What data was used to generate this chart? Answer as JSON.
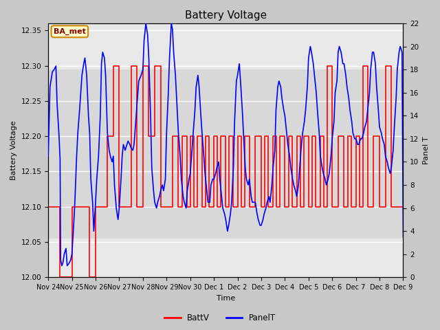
{
  "title": "Battery Voltage",
  "xlabel": "Time",
  "ylabel_left": "Battery Voltage",
  "ylabel_right": "Panel T",
  "ylim_left": [
    12.0,
    12.36
  ],
  "ylim_right": [
    0,
    22
  ],
  "yticks_left": [
    12.0,
    12.05,
    12.1,
    12.15,
    12.2,
    12.25,
    12.3,
    12.35
  ],
  "yticks_right": [
    0,
    2,
    4,
    6,
    8,
    10,
    12,
    14,
    16,
    18,
    20,
    22
  ],
  "fig_facecolor": "#c8c8c8",
  "ax_facecolor": "#e8e8e8",
  "band_facecolor": "#d8d8d8",
  "annotation_box": {
    "text": "BA_met",
    "facecolor": "#ffffcc",
    "edgecolor": "#cc8800"
  },
  "grid_color": "white",
  "batt_color": "red",
  "panel_color": "blue",
  "x_tick_labels": [
    "Nov 24",
    "Nov 25",
    "Nov 26",
    "Nov 27",
    "Nov 28",
    "Nov 29",
    "Nov 30",
    "Dec 1",
    "Dec 2",
    "Dec 3",
    "Dec 4",
    "Dec 5",
    "Dec 6",
    "Dec 7",
    "Dec 8",
    "Dec 9"
  ],
  "batt_data": [
    [
      0.0,
      12.1
    ],
    [
      1.0,
      12.1
    ],
    [
      1.0,
      12.0
    ],
    [
      2.0,
      12.0
    ],
    [
      2.0,
      12.1
    ],
    [
      3.0,
      12.1
    ],
    [
      3.0,
      12.1
    ],
    [
      3.5,
      12.1
    ],
    [
      3.5,
      12.0
    ],
    [
      4.0,
      12.0
    ],
    [
      4.0,
      12.1
    ],
    [
      5.0,
      12.1
    ],
    [
      5.0,
      12.2
    ],
    [
      5.5,
      12.2
    ],
    [
      5.5,
      12.3
    ],
    [
      6.0,
      12.3
    ],
    [
      6.0,
      12.1
    ],
    [
      7.0,
      12.1
    ],
    [
      7.0,
      12.3
    ],
    [
      7.5,
      12.3
    ],
    [
      7.5,
      12.1
    ],
    [
      8.0,
      12.1
    ],
    [
      8.0,
      12.3
    ],
    [
      8.5,
      12.3
    ],
    [
      8.5,
      12.2
    ],
    [
      9.0,
      12.2
    ],
    [
      9.0,
      12.3
    ],
    [
      9.5,
      12.3
    ],
    [
      9.5,
      12.1
    ],
    [
      10.5,
      12.1
    ],
    [
      10.5,
      12.2
    ],
    [
      11.0,
      12.2
    ],
    [
      11.0,
      12.1
    ],
    [
      11.3,
      12.1
    ],
    [
      11.3,
      12.2
    ],
    [
      11.7,
      12.2
    ],
    [
      11.7,
      12.1
    ],
    [
      12.0,
      12.1
    ],
    [
      12.0,
      12.2
    ],
    [
      12.3,
      12.2
    ],
    [
      12.3,
      12.1
    ],
    [
      12.6,
      12.1
    ],
    [
      12.6,
      12.2
    ],
    [
      13.0,
      12.2
    ],
    [
      13.0,
      12.1
    ],
    [
      13.3,
      12.1
    ],
    [
      13.3,
      12.2
    ],
    [
      13.6,
      12.2
    ],
    [
      13.6,
      12.1
    ],
    [
      14.0,
      12.1
    ],
    [
      14.0,
      12.2
    ],
    [
      14.3,
      12.2
    ],
    [
      14.3,
      12.1
    ],
    [
      14.6,
      12.1
    ],
    [
      14.6,
      12.2
    ],
    [
      15.0,
      12.2
    ],
    [
      15.0,
      12.1
    ],
    [
      15.3,
      12.1
    ],
    [
      15.3,
      12.2
    ],
    [
      15.6,
      12.2
    ],
    [
      15.6,
      12.1
    ],
    [
      16.0,
      12.1
    ],
    [
      16.0,
      12.2
    ],
    [
      16.3,
      12.2
    ],
    [
      16.3,
      12.1
    ],
    [
      16.6,
      12.1
    ],
    [
      16.6,
      12.2
    ],
    [
      17.0,
      12.2
    ],
    [
      17.0,
      12.1
    ],
    [
      17.5,
      12.1
    ],
    [
      17.5,
      12.2
    ],
    [
      18.0,
      12.2
    ],
    [
      18.0,
      12.1
    ],
    [
      18.3,
      12.1
    ],
    [
      18.3,
      12.2
    ],
    [
      18.6,
      12.2
    ],
    [
      18.6,
      12.1
    ],
    [
      19.0,
      12.1
    ],
    [
      19.0,
      12.2
    ],
    [
      19.3,
      12.2
    ],
    [
      19.3,
      12.1
    ],
    [
      19.6,
      12.1
    ],
    [
      19.6,
      12.2
    ],
    [
      20.0,
      12.2
    ],
    [
      20.0,
      12.1
    ],
    [
      20.3,
      12.1
    ],
    [
      20.3,
      12.2
    ],
    [
      20.6,
      12.2
    ],
    [
      20.6,
      12.1
    ],
    [
      21.0,
      12.1
    ],
    [
      21.0,
      12.2
    ],
    [
      21.3,
      12.2
    ],
    [
      21.3,
      12.1
    ],
    [
      21.6,
      12.1
    ],
    [
      21.6,
      12.2
    ],
    [
      22.0,
      12.2
    ],
    [
      22.0,
      12.1
    ],
    [
      22.3,
      12.1
    ],
    [
      22.3,
      12.2
    ],
    [
      22.6,
      12.2
    ],
    [
      22.6,
      12.1
    ],
    [
      23.0,
      12.1
    ],
    [
      23.0,
      12.2
    ],
    [
      23.3,
      12.2
    ],
    [
      23.3,
      12.1
    ],
    [
      23.6,
      12.1
    ],
    [
      23.6,
      12.3
    ],
    [
      24.0,
      12.3
    ],
    [
      24.0,
      12.1
    ],
    [
      24.5,
      12.1
    ],
    [
      24.5,
      12.2
    ],
    [
      25.0,
      12.2
    ],
    [
      25.0,
      12.1
    ],
    [
      25.3,
      12.1
    ],
    [
      25.3,
      12.2
    ],
    [
      25.6,
      12.2
    ],
    [
      25.6,
      12.1
    ],
    [
      26.0,
      12.1
    ],
    [
      26.0,
      12.2
    ],
    [
      26.3,
      12.2
    ],
    [
      26.3,
      12.1
    ],
    [
      26.6,
      12.1
    ],
    [
      26.6,
      12.3
    ],
    [
      27.0,
      12.3
    ],
    [
      27.0,
      12.1
    ],
    [
      27.5,
      12.1
    ],
    [
      27.5,
      12.2
    ],
    [
      28.0,
      12.2
    ],
    [
      28.0,
      12.1
    ],
    [
      28.5,
      12.1
    ],
    [
      28.5,
      12.3
    ],
    [
      29.0,
      12.3
    ],
    [
      29.0,
      12.1
    ],
    [
      30.0,
      12.1
    ]
  ],
  "panel_data": [
    [
      0.0,
      10.5
    ],
    [
      0.15,
      16.5
    ],
    [
      0.35,
      17.8
    ],
    [
      0.5,
      18.0
    ],
    [
      0.65,
      18.3
    ],
    [
      0.75,
      15.0
    ],
    [
      0.9,
      12.5
    ],
    [
      1.0,
      10.3
    ],
    [
      1.05,
      1.5
    ],
    [
      1.15,
      1.0
    ],
    [
      1.25,
      1.3
    ],
    [
      1.35,
      2.0
    ],
    [
      1.5,
      2.5
    ],
    [
      1.6,
      1.0
    ],
    [
      1.75,
      1.2
    ],
    [
      1.9,
      1.5
    ],
    [
      2.0,
      2.0
    ],
    [
      2.15,
      4.5
    ],
    [
      2.25,
      6.5
    ],
    [
      2.4,
      10.5
    ],
    [
      2.5,
      12.5
    ],
    [
      2.65,
      14.5
    ],
    [
      2.85,
      17.5
    ],
    [
      3.0,
      18.5
    ],
    [
      3.1,
      19.0
    ],
    [
      3.25,
      17.5
    ],
    [
      3.4,
      14.0
    ],
    [
      3.5,
      12.5
    ],
    [
      3.6,
      8.5
    ],
    [
      3.75,
      6.5
    ],
    [
      3.85,
      4.0
    ],
    [
      4.0,
      6.5
    ],
    [
      4.1,
      8.5
    ],
    [
      4.25,
      10.5
    ],
    [
      4.4,
      14.0
    ],
    [
      4.5,
      18.5
    ],
    [
      4.6,
      19.5
    ],
    [
      4.75,
      19.0
    ],
    [
      4.85,
      17.5
    ],
    [
      5.0,
      12.5
    ],
    [
      5.15,
      11.0
    ],
    [
      5.25,
      10.5
    ],
    [
      5.4,
      10.0
    ],
    [
      5.5,
      10.5
    ],
    [
      5.6,
      8.0
    ],
    [
      5.75,
      6.0
    ],
    [
      5.9,
      5.0
    ],
    [
      6.0,
      6.0
    ],
    [
      6.15,
      8.5
    ],
    [
      6.25,
      10.5
    ],
    [
      6.35,
      11.5
    ],
    [
      6.5,
      11.0
    ],
    [
      6.65,
      11.5
    ],
    [
      6.75,
      11.8
    ],
    [
      6.9,
      11.5
    ],
    [
      7.0,
      11.2
    ],
    [
      7.15,
      11.0
    ],
    [
      7.25,
      11.5
    ],
    [
      7.4,
      13.5
    ],
    [
      7.5,
      15.0
    ],
    [
      7.65,
      17.0
    ],
    [
      7.85,
      17.5
    ],
    [
      8.0,
      18.0
    ],
    [
      8.1,
      20.5
    ],
    [
      8.25,
      22.0
    ],
    [
      8.4,
      21.0
    ],
    [
      8.5,
      19.0
    ],
    [
      8.65,
      14.0
    ],
    [
      8.75,
      9.5
    ],
    [
      8.9,
      7.5
    ],
    [
      9.0,
      6.5
    ],
    [
      9.15,
      6.0
    ],
    [
      9.25,
      6.5
    ],
    [
      9.4,
      7.0
    ],
    [
      9.5,
      7.5
    ],
    [
      9.65,
      8.0
    ],
    [
      9.75,
      7.5
    ],
    [
      9.9,
      8.5
    ],
    [
      10.0,
      12.5
    ],
    [
      10.15,
      16.0
    ],
    [
      10.25,
      19.0
    ],
    [
      10.4,
      22.0
    ],
    [
      10.5,
      21.5
    ],
    [
      10.6,
      19.5
    ],
    [
      10.75,
      17.5
    ],
    [
      10.9,
      14.5
    ],
    [
      11.0,
      12.5
    ],
    [
      11.15,
      10.5
    ],
    [
      11.25,
      8.5
    ],
    [
      11.4,
      7.0
    ],
    [
      11.5,
      6.5
    ],
    [
      11.65,
      6.0
    ],
    [
      11.75,
      7.5
    ],
    [
      11.9,
      8.5
    ],
    [
      12.0,
      9.0
    ],
    [
      12.15,
      11.0
    ],
    [
      12.25,
      12.5
    ],
    [
      12.4,
      14.5
    ],
    [
      12.5,
      16.5
    ],
    [
      12.65,
      17.5
    ],
    [
      12.75,
      16.5
    ],
    [
      12.9,
      14.0
    ],
    [
      13.0,
      12.5
    ],
    [
      13.15,
      10.5
    ],
    [
      13.25,
      9.0
    ],
    [
      13.4,
      7.5
    ],
    [
      13.5,
      6.5
    ],
    [
      13.65,
      6.5
    ],
    [
      13.75,
      8.0
    ],
    [
      13.9,
      8.5
    ],
    [
      14.0,
      8.5
    ],
    [
      14.15,
      9.0
    ],
    [
      14.25,
      9.5
    ],
    [
      14.4,
      10.0
    ],
    [
      14.5,
      8.5
    ],
    [
      14.65,
      7.0
    ],
    [
      14.75,
      6.0
    ],
    [
      14.9,
      5.5
    ],
    [
      15.0,
      5.0
    ],
    [
      15.15,
      4.0
    ],
    [
      15.25,
      4.5
    ],
    [
      15.4,
      5.5
    ],
    [
      15.5,
      6.5
    ],
    [
      15.65,
      9.5
    ],
    [
      15.75,
      13.5
    ],
    [
      15.9,
      17.0
    ],
    [
      16.0,
      17.5
    ],
    [
      16.15,
      18.5
    ],
    [
      16.25,
      17.0
    ],
    [
      16.4,
      14.5
    ],
    [
      16.5,
      12.5
    ],
    [
      16.65,
      9.5
    ],
    [
      16.75,
      8.5
    ],
    [
      16.9,
      8.0
    ],
    [
      17.0,
      8.5
    ],
    [
      17.15,
      7.0
    ],
    [
      17.25,
      6.5
    ],
    [
      17.4,
      6.5
    ],
    [
      17.5,
      6.5
    ],
    [
      17.65,
      5.5
    ],
    [
      17.75,
      5.0
    ],
    [
      17.9,
      4.5
    ],
    [
      18.0,
      4.5
    ],
    [
      18.15,
      5.0
    ],
    [
      18.25,
      5.5
    ],
    [
      18.4,
      6.0
    ],
    [
      18.5,
      6.5
    ],
    [
      18.65,
      7.0
    ],
    [
      18.75,
      6.5
    ],
    [
      18.9,
      8.0
    ],
    [
      19.0,
      9.5
    ],
    [
      19.15,
      11.0
    ],
    [
      19.25,
      14.5
    ],
    [
      19.4,
      16.5
    ],
    [
      19.5,
      17.0
    ],
    [
      19.65,
      16.5
    ],
    [
      19.75,
      15.5
    ],
    [
      19.9,
      14.5
    ],
    [
      20.0,
      14.0
    ],
    [
      20.15,
      12.5
    ],
    [
      20.25,
      11.5
    ],
    [
      20.4,
      10.5
    ],
    [
      20.5,
      9.5
    ],
    [
      20.65,
      8.5
    ],
    [
      20.75,
      8.0
    ],
    [
      20.9,
      7.5
    ],
    [
      21.0,
      7.0
    ],
    [
      21.15,
      8.0
    ],
    [
      21.25,
      9.5
    ],
    [
      21.4,
      11.5
    ],
    [
      21.5,
      12.5
    ],
    [
      21.65,
      13.5
    ],
    [
      21.75,
      14.5
    ],
    [
      21.9,
      16.5
    ],
    [
      22.0,
      19.0
    ],
    [
      22.15,
      20.0
    ],
    [
      22.25,
      19.5
    ],
    [
      22.4,
      18.5
    ],
    [
      22.5,
      17.5
    ],
    [
      22.65,
      16.0
    ],
    [
      22.75,
      14.5
    ],
    [
      22.9,
      12.5
    ],
    [
      23.0,
      10.5
    ],
    [
      23.15,
      9.5
    ],
    [
      23.25,
      9.0
    ],
    [
      23.4,
      8.5
    ],
    [
      23.5,
      8.0
    ],
    [
      23.65,
      8.5
    ],
    [
      23.75,
      9.0
    ],
    [
      23.9,
      10.5
    ],
    [
      24.0,
      12.0
    ],
    [
      24.15,
      13.5
    ],
    [
      24.25,
      16.0
    ],
    [
      24.4,
      17.0
    ],
    [
      24.5,
      19.5
    ],
    [
      24.6,
      20.0
    ],
    [
      24.75,
      19.5
    ],
    [
      24.9,
      18.5
    ],
    [
      25.0,
      18.5
    ],
    [
      25.15,
      17.5
    ],
    [
      25.25,
      16.5
    ],
    [
      25.4,
      15.5
    ],
    [
      25.5,
      14.5
    ],
    [
      25.65,
      13.5
    ],
    [
      25.75,
      12.5
    ],
    [
      25.9,
      12.0
    ],
    [
      26.0,
      12.0
    ],
    [
      26.15,
      11.5
    ],
    [
      26.25,
      11.5
    ],
    [
      26.4,
      12.0
    ],
    [
      26.5,
      12.0
    ],
    [
      26.65,
      12.5
    ],
    [
      26.75,
      13.0
    ],
    [
      26.9,
      13.5
    ],
    [
      27.0,
      14.5
    ],
    [
      27.15,
      16.0
    ],
    [
      27.25,
      18.0
    ],
    [
      27.4,
      19.5
    ],
    [
      27.5,
      19.5
    ],
    [
      27.65,
      18.5
    ],
    [
      27.75,
      16.5
    ],
    [
      27.9,
      14.5
    ],
    [
      28.0,
      13.0
    ],
    [
      28.15,
      12.5
    ],
    [
      28.25,
      12.0
    ],
    [
      28.4,
      11.5
    ],
    [
      28.5,
      10.5
    ],
    [
      28.65,
      10.0
    ],
    [
      28.75,
      9.5
    ],
    [
      28.9,
      9.0
    ],
    [
      29.0,
      9.5
    ],
    [
      29.15,
      11.0
    ],
    [
      29.25,
      13.0
    ],
    [
      29.4,
      15.5
    ],
    [
      29.5,
      18.0
    ],
    [
      29.65,
      19.5
    ],
    [
      29.75,
      20.0
    ],
    [
      29.9,
      19.5
    ],
    [
      30.0,
      3.5
    ]
  ],
  "xlim": [
    0,
    30
  ],
  "num_days": 16
}
